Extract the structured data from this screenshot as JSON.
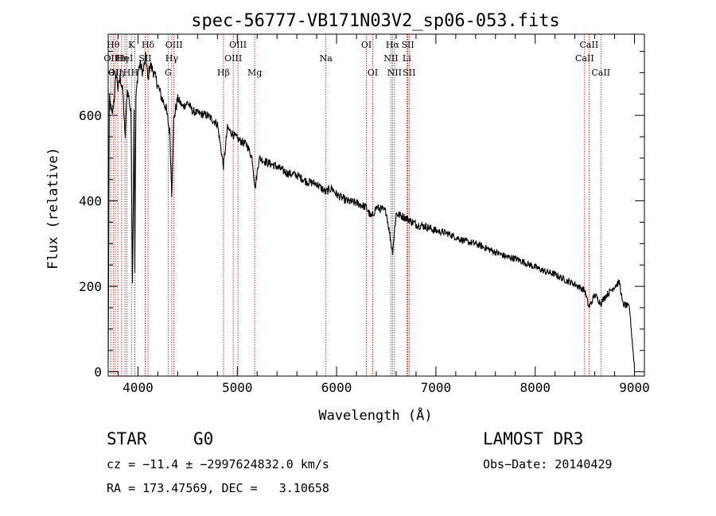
{
  "chart_data": {
    "type": "line",
    "title": "spec-56777-VB171N03V2_sp06-053.fits",
    "xlabel": "Wavelength (Å)",
    "ylabel": "Flux (relative)",
    "xlim": [
      3700,
      9100
    ],
    "ylim": [
      -10,
      790
    ],
    "xticks": [
      4000,
      5000,
      6000,
      7000,
      8000,
      9000
    ],
    "yticks": [
      0,
      200,
      400,
      600
    ],
    "spectrum_anchors": [
      [
        3700,
        20
      ],
      [
        3705,
        270
      ],
      [
        3710,
        640
      ],
      [
        3740,
        600
      ],
      [
        3760,
        640
      ],
      [
        3780,
        700
      ],
      [
        3800,
        660
      ],
      [
        3820,
        690
      ],
      [
        3850,
        650
      ],
      [
        3870,
        540
      ],
      [
        3890,
        660
      ],
      [
        3910,
        640
      ],
      [
        3930,
        600
      ],
      [
        3945,
        190
      ],
      [
        3960,
        620
      ],
      [
        3968,
        240
      ],
      [
        3980,
        640
      ],
      [
        4000,
        700
      ],
      [
        4020,
        720
      ],
      [
        4050,
        700
      ],
      [
        4080,
        740
      ],
      [
        4101,
        680
      ],
      [
        4120,
        720
      ],
      [
        4160,
        700
      ],
      [
        4200,
        670
      ],
      [
        4240,
        640
      ],
      [
        4280,
        620
      ],
      [
        4300,
        590
      ],
      [
        4320,
        560
      ],
      [
        4340,
        420
      ],
      [
        4360,
        590
      ],
      [
        4400,
        640
      ],
      [
        4450,
        620
      ],
      [
        4500,
        630
      ],
      [
        4550,
        610
      ],
      [
        4600,
        605
      ],
      [
        4700,
        600
      ],
      [
        4800,
        580
      ],
      [
        4861,
        480
      ],
      [
        4900,
        570
      ],
      [
        5000,
        545
      ],
      [
        5100,
        530
      ],
      [
        5150,
        500
      ],
      [
        5180,
        430
      ],
      [
        5220,
        500
      ],
      [
        5300,
        490
      ],
      [
        5400,
        480
      ],
      [
        5500,
        465
      ],
      [
        5600,
        460
      ],
      [
        5700,
        445
      ],
      [
        5800,
        440
      ],
      [
        5890,
        420
      ],
      [
        5950,
        430
      ],
      [
        6000,
        415
      ],
      [
        6100,
        400
      ],
      [
        6200,
        395
      ],
      [
        6300,
        385
      ],
      [
        6350,
        360
      ],
      [
        6400,
        385
      ],
      [
        6500,
        375
      ],
      [
        6563,
        280
      ],
      [
        6600,
        370
      ],
      [
        6700,
        360
      ],
      [
        6800,
        345
      ],
      [
        6900,
        340
      ],
      [
        7000,
        330
      ],
      [
        7100,
        325
      ],
      [
        7200,
        315
      ],
      [
        7300,
        305
      ],
      [
        7400,
        300
      ],
      [
        7500,
        290
      ],
      [
        7600,
        280
      ],
      [
        7700,
        270
      ],
      [
        7800,
        265
      ],
      [
        7900,
        255
      ],
      [
        8000,
        245
      ],
      [
        8100,
        235
      ],
      [
        8200,
        228
      ],
      [
        8300,
        215
      ],
      [
        8400,
        205
      ],
      [
        8500,
        190
      ],
      [
        8542,
        150
      ],
      [
        8600,
        180
      ],
      [
        8662,
        160
      ],
      [
        8700,
        175
      ],
      [
        8800,
        200
      ],
      [
        8850,
        210
      ],
      [
        8880,
        160
      ],
      [
        8950,
        150
      ],
      [
        9000,
        10
      ]
    ],
    "emission_lines": [
      {
        "wavelength": 3726,
        "label": "OII",
        "row": 1
      },
      {
        "wavelength": 3750,
        "label": "Hθ",
        "row": 0
      },
      {
        "wavelength": 3771,
        "label": "OII",
        "row": 2
      },
      {
        "wavelength": 3797,
        "label": "Hη",
        "row": 2
      },
      {
        "wavelength": 3835,
        "label": "Hη",
        "row": 1
      },
      {
        "wavelength": 3869,
        "label": "HeI",
        "row": 1
      },
      {
        "wavelength": 3889,
        "label": "H",
        "row": 2
      },
      {
        "wavelength": 3934,
        "label": "K",
        "row": 0
      },
      {
        "wavelength": 3968,
        "label": "H",
        "row": 2
      },
      {
        "wavelength": 4072,
        "label": "SII",
        "row": 1
      },
      {
        "wavelength": 4101,
        "label": "Hδ",
        "row": 0
      },
      {
        "wavelength": 4304,
        "label": "G",
        "row": 2
      },
      {
        "wavelength": 4340,
        "label": "Hγ",
        "row": 1
      },
      {
        "wavelength": 4363,
        "label": "OIII",
        "row": 0
      },
      {
        "wavelength": 4861,
        "label": "Hβ",
        "row": 2
      },
      {
        "wavelength": 4959,
        "label": "OIII",
        "row": 1
      },
      {
        "wavelength": 5007,
        "label": "OIII",
        "row": 0
      },
      {
        "wavelength": 5175,
        "label": "Mg",
        "row": 2
      },
      {
        "wavelength": 5893,
        "label": "Na",
        "row": 1
      },
      {
        "wavelength": 6300,
        "label": "OI",
        "row": 0
      },
      {
        "wavelength": 6364,
        "label": "OI",
        "row": 2
      },
      {
        "wavelength": 6548,
        "label": "NII",
        "row": 1
      },
      {
        "wavelength": 6563,
        "label": "Hα",
        "row": 0
      },
      {
        "wavelength": 6583,
        "label": "NII",
        "row": 2
      },
      {
        "wavelength": 6707,
        "label": "Li",
        "row": 1
      },
      {
        "wavelength": 6717,
        "label": "SII",
        "row": 0
      },
      {
        "wavelength": 6731,
        "label": "SII",
        "row": 2
      },
      {
        "wavelength": 8498,
        "label": "CaII",
        "row": 1
      },
      {
        "wavelength": 8542,
        "label": "CaII",
        "row": 0
      },
      {
        "wavelength": 8662,
        "label": "CaII",
        "row": 2
      }
    ]
  },
  "colors": {
    "line_marker": "#cc0000",
    "spectrum": "#000000",
    "axes": "#000000"
  },
  "info": {
    "object_class": "STAR",
    "subclass": "G0",
    "survey": "LAMOST DR3",
    "velocity_text": "cz = −11.4 ± −2997624832.0 km/s",
    "obs_date_text": "Obs−Date: 20140429",
    "coords_text": "RA = 173.47569, DEC =   3.10658"
  }
}
